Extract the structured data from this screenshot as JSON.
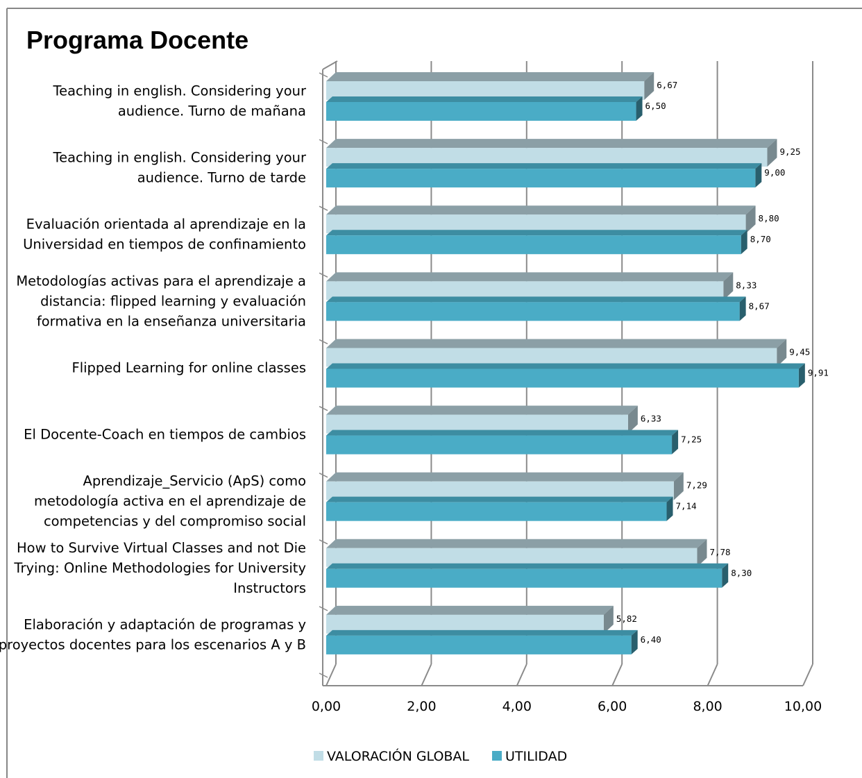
{
  "chart_data": {
    "type": "bar",
    "orientation": "horizontal",
    "title": "Programa Docente",
    "categories": [
      [
        "Teaching in english. Considering your",
        "audience.  Turno de mañana"
      ],
      [
        "Teaching in english. Considering your",
        "audience.  Turno de tarde"
      ],
      [
        "Evaluación orientada al aprendizaje en la",
        "Universidad en tiempos de confinamiento"
      ],
      [
        "Metodologías activas para el aprendizaje a",
        "distancia: flipped learning y evaluación",
        "formativa en la enseñanza universitaria"
      ],
      [
        "Flipped Learning for online classes"
      ],
      [
        "El Docente-Coach en tiempos de cambios"
      ],
      [
        "Aprendizaje_Servicio (ApS) como",
        "metodología activa en el aprendizaje de",
        "competencias y del compromiso social"
      ],
      [
        "How to Survive Virtual Classes and not Die",
        "Trying: Online Methodologies for University",
        "Instructors"
      ],
      [
        "Elaboración y adaptación de programas y",
        "proyectos docentes para los escenarios A y B"
      ]
    ],
    "series": [
      {
        "name": "VALORACIÓN GLOBAL",
        "color": "#c1dde6",
        "values": [
          6.67,
          9.25,
          8.8,
          8.33,
          9.45,
          6.33,
          7.29,
          7.78,
          5.82
        ],
        "labels": [
          "6,67",
          "9,25",
          "8,80",
          "8,33",
          "9,45",
          "6,33",
          "7,29",
          "7,78",
          "5,82"
        ]
      },
      {
        "name": "UTILIDAD",
        "color": "#4aacc6",
        "values": [
          6.5,
          9.0,
          8.7,
          8.67,
          9.91,
          7.25,
          7.14,
          8.3,
          6.4
        ],
        "labels": [
          "6,50",
          "9,00",
          "8,70",
          "8,67",
          "9,91",
          "7,25",
          "7,14",
          "8,30",
          "6,40"
        ]
      }
    ],
    "xlim": [
      0,
      10
    ],
    "xticks": [
      "0,00",
      "2,00",
      "4,00",
      "6,00",
      "8,00",
      "10,00"
    ],
    "grid": true,
    "legend": "bottom"
  }
}
